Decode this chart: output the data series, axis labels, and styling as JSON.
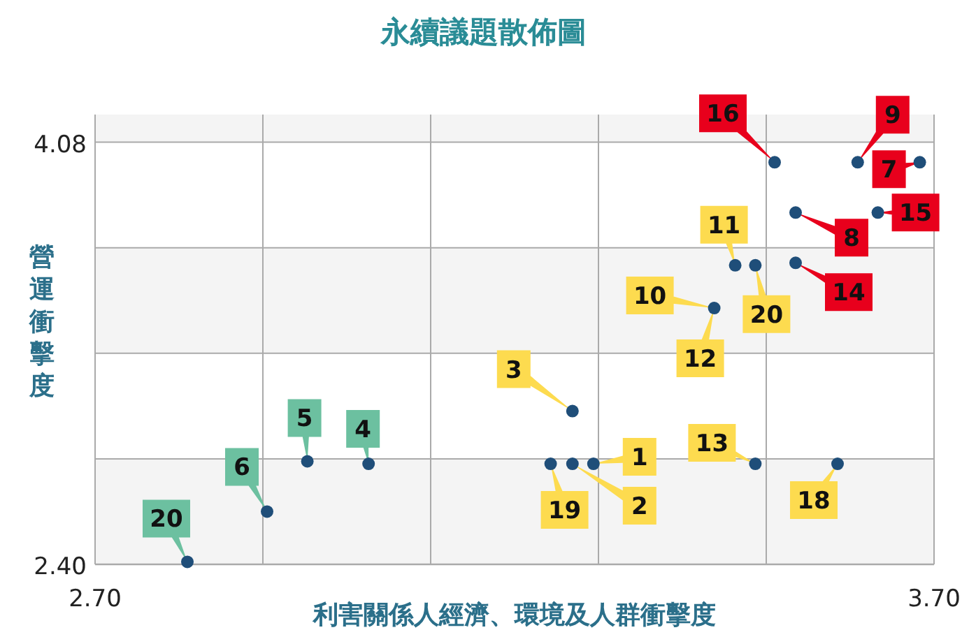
{
  "chart_data": {
    "type": "scatter",
    "title": "永續議題散佈圖",
    "xlabel": "利害關係人經濟、環境及人群衝擊度",
    "ylabel": "營運衝擊度",
    "xlim": [
      2.7,
      3.7
    ],
    "ylim": [
      2.4,
      4.19
    ],
    "xticks": [
      {
        "value": 2.7,
        "label": "2.70"
      },
      {
        "value": 2.9,
        "label": null
      },
      {
        "value": 3.1,
        "label": null
      },
      {
        "value": 3.3,
        "label": null
      },
      {
        "value": 3.5,
        "label": null
      },
      {
        "value": 3.7,
        "label": "3.70"
      }
    ],
    "yticks": [
      {
        "value": 2.4,
        "label": "2.40"
      },
      {
        "value": 2.82,
        "label": null
      },
      {
        "value": 3.24,
        "label": null
      },
      {
        "value": 3.66,
        "label": null
      },
      {
        "value": 4.08,
        "label": "4.08"
      }
    ],
    "grid": true,
    "marker": "circle",
    "series": [
      {
        "color": "#1f4e79",
        "x": [
          2.81,
          2.905,
          2.953,
          3.026
        ],
        "values": [
          2.41,
          2.61,
          2.81,
          2.8
        ]
      },
      {
        "color": "#1f4e79",
        "x": [
          3.269,
          3.243,
          3.269,
          3.294,
          3.438,
          3.463,
          3.487,
          3.487,
          3.585
        ],
        "values": [
          3.01,
          2.8,
          2.8,
          2.8,
          3.42,
          3.59,
          3.59,
          2.8,
          2.8
        ]
      },
      {
        "color": "#1f4e79",
        "x": [
          3.51,
          3.609,
          3.683,
          3.535,
          3.633,
          3.535
        ],
        "values": [
          4.0,
          4.0,
          4.0,
          3.8,
          3.8,
          3.6
        ]
      }
    ],
    "annotations": [
      {
        "text": "20",
        "x": 2.81,
        "y": 2.41
      },
      {
        "text": "6",
        "x": 2.905,
        "y": 2.61
      },
      {
        "text": "5",
        "x": 2.953,
        "y": 2.81
      },
      {
        "text": "4",
        "x": 3.026,
        "y": 2.8
      },
      {
        "text": "3",
        "x": 3.269,
        "y": 3.01
      },
      {
        "text": "19",
        "x": 3.243,
        "y": 2.8
      },
      {
        "text": "2",
        "x": 3.269,
        "y": 2.8
      },
      {
        "text": "1",
        "x": 3.294,
        "y": 2.8
      },
      {
        "text": "10",
        "x": 3.438,
        "y": 3.42
      },
      {
        "text": "12",
        "x": 3.438,
        "y": 3.42
      },
      {
        "text": "11",
        "x": 3.463,
        "y": 3.59
      },
      {
        "text": "20",
        "x": 3.487,
        "y": 3.59
      },
      {
        "text": "13",
        "x": 3.487,
        "y": 2.8
      },
      {
        "text": "18",
        "x": 3.585,
        "y": 2.8
      },
      {
        "text": "16",
        "x": 3.51,
        "y": 4.0
      },
      {
        "text": "9",
        "x": 3.609,
        "y": 4.0
      },
      {
        "text": "7",
        "x": 3.683,
        "y": 4.0
      },
      {
        "text": "8",
        "x": 3.535,
        "y": 3.8
      },
      {
        "text": "15",
        "x": 3.633,
        "y": 3.8
      },
      {
        "text": "14",
        "x": 3.535,
        "y": 3.6
      }
    ]
  }
}
